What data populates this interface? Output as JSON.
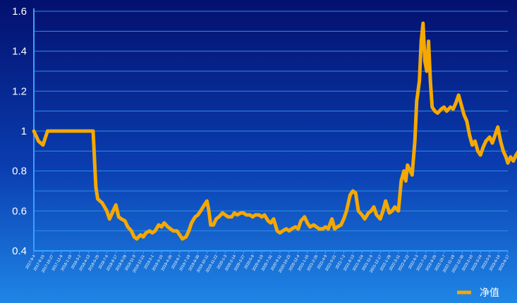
{
  "chart_data": {
    "type": "line",
    "title": "",
    "xlabel": "",
    "ylabel": "",
    "ylim": [
      0.4,
      1.6
    ],
    "yticks": [
      "0.4",
      "0.6",
      "0.8",
      "1",
      "1.2",
      "1.4",
      "1.6"
    ],
    "grid": true,
    "legend_position": "bottom-right",
    "colors": {
      "line": "#f5a800",
      "grid": "#2f8ee8",
      "axis": "#3aa0ff",
      "text": "#ffffff"
    },
    "xtick_labels": [
      "2017-8-4",
      "2017-9-15",
      "2017-10-27",
      "2017-12-8",
      "2018-1-19",
      "2018-3-2",
      "2018-4-13",
      "2018-5-25",
      "2018-7-6",
      "2018-8-17",
      "2018-9-28",
      "2018-11-9",
      "2018-12-21",
      "2019-2-1",
      "2019-3-15",
      "2019-4-26",
      "2019-6-7",
      "2019-7-19",
      "2019-8-30",
      "2019-10-11",
      "2019-11-22",
      "2020-1-3",
      "2020-2-14",
      "2020-3-27",
      "2020-5-8",
      "2020-6-19",
      "2020-7-31",
      "2020-9-11",
      "2020-10-23",
      "2020-12-4",
      "2021-1-15",
      "2021-2-26",
      "2021-4-9",
      "2021-5-21",
      "2021-7-2",
      "2021-8-13",
      "2021-9-24",
      "2021-11-5",
      "2021-12-17",
      "2022-1-28",
      "2022-3-11",
      "2022-4-22",
      "2022-6-3",
      "2022-7-15",
      "2022-8-26",
      "2022-10-7",
      "2022-11-18",
      "2022-12-30",
      "2023-2-10",
      "2023-3-24",
      "2023-5-5",
      "2023-6-16",
      "2023-8-17"
    ],
    "series": [
      {
        "name": "净值",
        "points": [
          [
            0,
            1.0
          ],
          [
            0.5,
            0.95
          ],
          [
            1,
            0.93
          ],
          [
            1.5,
            1.0
          ],
          [
            3,
            1.0
          ],
          [
            5,
            1.0
          ],
          [
            6.5,
            1.0
          ],
          [
            6.8,
            0.72
          ],
          [
            7,
            0.66
          ],
          [
            7.5,
            0.64
          ],
          [
            8,
            0.6
          ],
          [
            8.3,
            0.56
          ],
          [
            8.7,
            0.6
          ],
          [
            9,
            0.63
          ],
          [
            9.3,
            0.57
          ],
          [
            9.6,
            0.56
          ],
          [
            10,
            0.55
          ],
          [
            10.3,
            0.52
          ],
          [
            10.7,
            0.5
          ],
          [
            11,
            0.47
          ],
          [
            11.3,
            0.46
          ],
          [
            11.7,
            0.48
          ],
          [
            12,
            0.47
          ],
          [
            12.3,
            0.49
          ],
          [
            12.7,
            0.5
          ],
          [
            13,
            0.49
          ],
          [
            13.3,
            0.5
          ],
          [
            13.7,
            0.53
          ],
          [
            14,
            0.52
          ],
          [
            14.3,
            0.54
          ],
          [
            14.7,
            0.52
          ],
          [
            15,
            0.51
          ],
          [
            15.3,
            0.5
          ],
          [
            15.7,
            0.5
          ],
          [
            16,
            0.48
          ],
          [
            16.3,
            0.46
          ],
          [
            16.7,
            0.47
          ],
          [
            17,
            0.5
          ],
          [
            17.3,
            0.54
          ],
          [
            17.7,
            0.57
          ],
          [
            18,
            0.58
          ],
          [
            18.3,
            0.6
          ],
          [
            18.7,
            0.63
          ],
          [
            19,
            0.65
          ],
          [
            19.2,
            0.6
          ],
          [
            19.4,
            0.53
          ],
          [
            19.7,
            0.53
          ],
          [
            20,
            0.56
          ],
          [
            20.3,
            0.57
          ],
          [
            20.7,
            0.59
          ],
          [
            21,
            0.58
          ],
          [
            21.3,
            0.57
          ],
          [
            21.7,
            0.57
          ],
          [
            22,
            0.59
          ],
          [
            22.3,
            0.58
          ],
          [
            22.7,
            0.59
          ],
          [
            23,
            0.59
          ],
          [
            23.3,
            0.58
          ],
          [
            23.7,
            0.58
          ],
          [
            24,
            0.57
          ],
          [
            24.3,
            0.58
          ],
          [
            24.7,
            0.58
          ],
          [
            25,
            0.57
          ],
          [
            25.3,
            0.58
          ],
          [
            25.7,
            0.55
          ],
          [
            26,
            0.54
          ],
          [
            26.3,
            0.56
          ],
          [
            26.7,
            0.5
          ],
          [
            27,
            0.49
          ],
          [
            27.3,
            0.5
          ],
          [
            27.7,
            0.51
          ],
          [
            28,
            0.5
          ],
          [
            28.3,
            0.51
          ],
          [
            28.7,
            0.52
          ],
          [
            29,
            0.51
          ],
          [
            29.3,
            0.55
          ],
          [
            29.7,
            0.57
          ],
          [
            30,
            0.54
          ],
          [
            30.3,
            0.52
          ],
          [
            30.7,
            0.53
          ],
          [
            31,
            0.52
          ],
          [
            31.3,
            0.51
          ],
          [
            31.7,
            0.51
          ],
          [
            32,
            0.52
          ],
          [
            32.3,
            0.51
          ],
          [
            32.7,
            0.56
          ],
          [
            33,
            0.51
          ],
          [
            33.3,
            0.52
          ],
          [
            33.7,
            0.53
          ],
          [
            34,
            0.56
          ],
          [
            34.3,
            0.6
          ],
          [
            34.7,
            0.68
          ],
          [
            35,
            0.7
          ],
          [
            35.3,
            0.69
          ],
          [
            35.6,
            0.6
          ],
          [
            36,
            0.58
          ],
          [
            36.3,
            0.56
          ],
          [
            36.7,
            0.59
          ],
          [
            37,
            0.6
          ],
          [
            37.3,
            0.62
          ],
          [
            37.6,
            0.58
          ],
          [
            38,
            0.56
          ],
          [
            38.3,
            0.6
          ],
          [
            38.6,
            0.65
          ],
          [
            39,
            0.59
          ],
          [
            39.3,
            0.6
          ],
          [
            39.6,
            0.62
          ],
          [
            40,
            0.6
          ],
          [
            40.3,
            0.75
          ],
          [
            40.6,
            0.8
          ],
          [
            40.8,
            0.75
          ],
          [
            41,
            0.83
          ],
          [
            41.3,
            0.8
          ],
          [
            41.5,
            0.78
          ],
          [
            41.8,
            0.95
          ],
          [
            42,
            1.15
          ],
          [
            42.3,
            1.25
          ],
          [
            42.5,
            1.45
          ],
          [
            42.7,
            1.54
          ],
          [
            42.9,
            1.35
          ],
          [
            43.1,
            1.3
          ],
          [
            43.3,
            1.45
          ],
          [
            43.5,
            1.25
          ],
          [
            43.7,
            1.12
          ],
          [
            44,
            1.1
          ],
          [
            44.3,
            1.09
          ],
          [
            44.7,
            1.11
          ],
          [
            45,
            1.12
          ],
          [
            45.3,
            1.1
          ],
          [
            45.7,
            1.12
          ],
          [
            46,
            1.11
          ],
          [
            46.3,
            1.14
          ],
          [
            46.6,
            1.18
          ],
          [
            46.9,
            1.13
          ],
          [
            47.2,
            1.08
          ],
          [
            47.5,
            1.05
          ],
          [
            47.8,
            0.98
          ],
          [
            48.1,
            0.93
          ],
          [
            48.4,
            0.95
          ],
          [
            48.7,
            0.9
          ],
          [
            49,
            0.88
          ],
          [
            49.3,
            0.92
          ],
          [
            49.6,
            0.95
          ],
          [
            50,
            0.97
          ],
          [
            50.3,
            0.94
          ],
          [
            50.6,
            0.98
          ],
          [
            50.9,
            1.02
          ],
          [
            51.2,
            0.95
          ],
          [
            51.5,
            0.9
          ],
          [
            51.8,
            0.87
          ],
          [
            52,
            0.84
          ],
          [
            52.3,
            0.87
          ],
          [
            52.6,
            0.85
          ],
          [
            52.9,
            0.88
          ],
          [
            53.2,
            0.9
          ]
        ]
      }
    ]
  }
}
